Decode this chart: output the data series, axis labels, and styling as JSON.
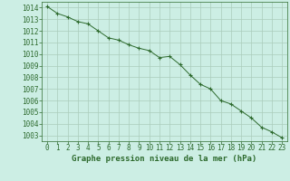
{
  "x": [
    0,
    1,
    2,
    3,
    4,
    5,
    6,
    7,
    8,
    9,
    10,
    11,
    12,
    13,
    14,
    15,
    16,
    17,
    18,
    19,
    20,
    21,
    22,
    23
  ],
  "y": [
    1014.1,
    1013.5,
    1013.2,
    1012.8,
    1012.6,
    1012.0,
    1011.4,
    1011.2,
    1010.8,
    1010.5,
    1010.3,
    1009.7,
    1009.8,
    1009.1,
    1008.2,
    1007.4,
    1007.0,
    1006.0,
    1005.7,
    1005.1,
    1004.5,
    1003.7,
    1003.3,
    1002.8
  ],
  "line_color": "#2d6a2d",
  "marker": "+",
  "bg_color": "#cceee4",
  "grid_color": "#aaccbb",
  "title": "Graphe pression niveau de la mer (hPa)",
  "title_color": "#2d6a2d",
  "title_fontsize": 6.5,
  "tick_fontsize": 5.5,
  "ylim": [
    1002.5,
    1014.5
  ],
  "yticks": [
    1003,
    1004,
    1005,
    1006,
    1007,
    1008,
    1009,
    1010,
    1011,
    1012,
    1013,
    1014
  ],
  "xlim": [
    -0.5,
    23.5
  ],
  "xticks": [
    0,
    1,
    2,
    3,
    4,
    5,
    6,
    7,
    8,
    9,
    10,
    11,
    12,
    13,
    14,
    15,
    16,
    17,
    18,
    19,
    20,
    21,
    22,
    23
  ]
}
